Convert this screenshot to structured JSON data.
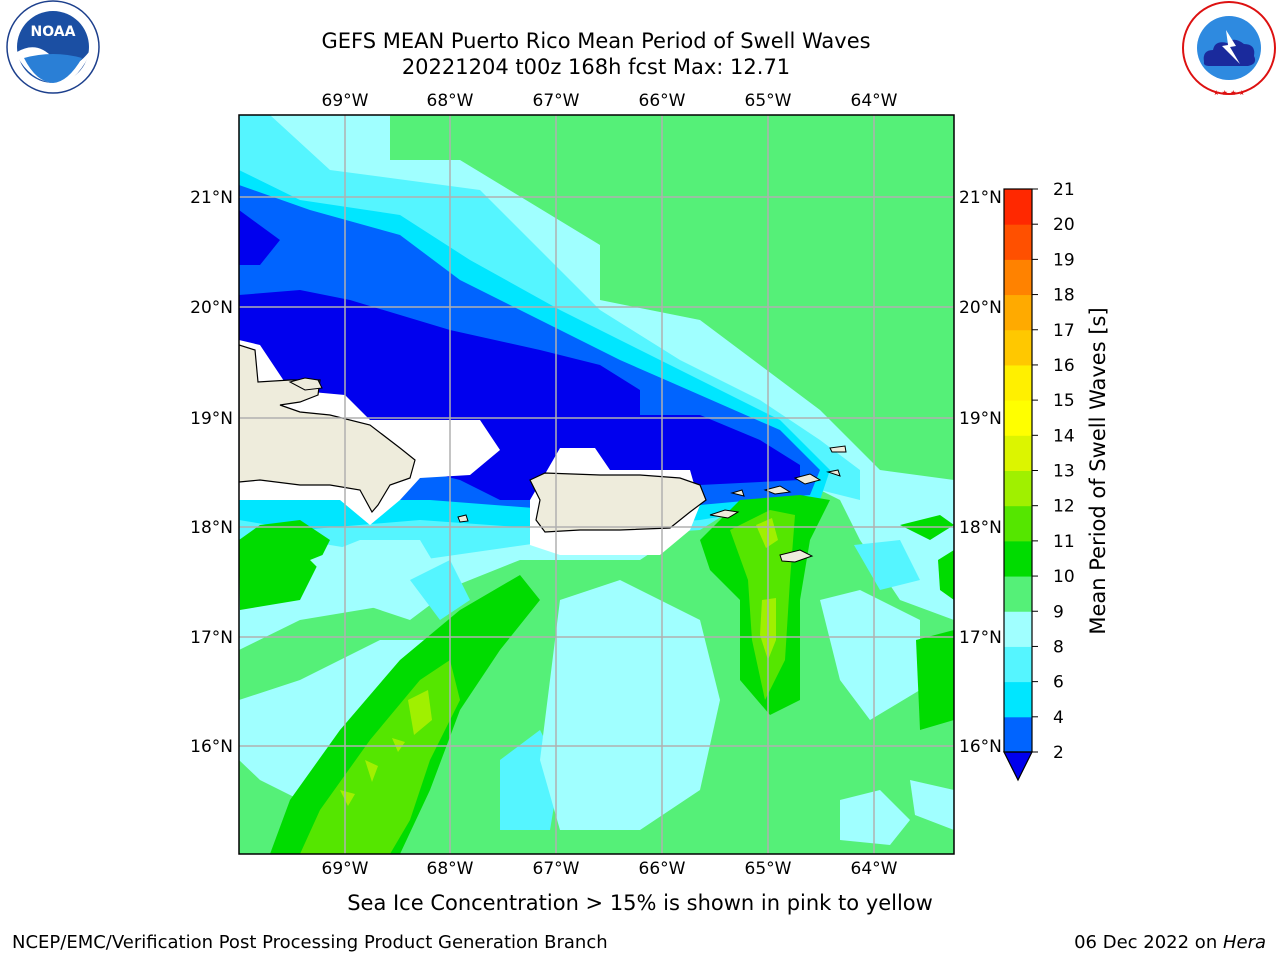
{
  "title": {
    "line1": "GEFS MEAN Puerto Rico Mean Period of Swell Waves",
    "line2": "20221204 t00z 168h fcst   Max: 12.71"
  },
  "logos": {
    "noaa_text": "NOAA",
    "noaa_ring": "NATIONAL OCEANIC AND ATMOSPHERIC ADMINISTRATION · U.S. DEPARTMENT OF COMMERCE",
    "nws_ring": "NATIONAL WEATHER SERVICE"
  },
  "map": {
    "lon_labels": [
      "69°W",
      "68°W",
      "67°W",
      "66°W",
      "65°W",
      "64°W"
    ],
    "lat_labels": [
      "21°N",
      "20°N",
      "19°N",
      "18°N",
      "17°N",
      "16°N"
    ],
    "extent": {
      "lon_min": -70.0,
      "lon_max": -63.3,
      "lat_min": 15.0,
      "lat_max": 21.75
    },
    "gridlines": true,
    "land_color": "#eeecdc",
    "grid_color": "#b0b0b0"
  },
  "colorbar": {
    "label": "Mean Period of Swell Waves [s]",
    "ticks": [
      "2",
      "4",
      "6",
      "8",
      "9",
      "10",
      "11",
      "12",
      "13",
      "14",
      "15",
      "16",
      "17",
      "18",
      "19",
      "20",
      "21"
    ],
    "colors": [
      "#0064ff",
      "#00e6ff",
      "#55f5ff",
      "#a0ffff",
      "#55f078",
      "#00dc00",
      "#55e600",
      "#a0f000",
      "#dcf500",
      "#ffff00",
      "#fff000",
      "#ffc800",
      "#ffaa00",
      "#ff8200",
      "#ff5000",
      "#ff2800"
    ],
    "under_color": "#0000ee",
    "extend": "min"
  },
  "note": "Sea Ice Concentration > 15% is shown in pink to yellow",
  "footer": {
    "left": "NCEP/EMC/Verification Post Processing Product Generation Branch",
    "right_prefix": "06 Dec 2022 on ",
    "right_host": "Hera"
  }
}
